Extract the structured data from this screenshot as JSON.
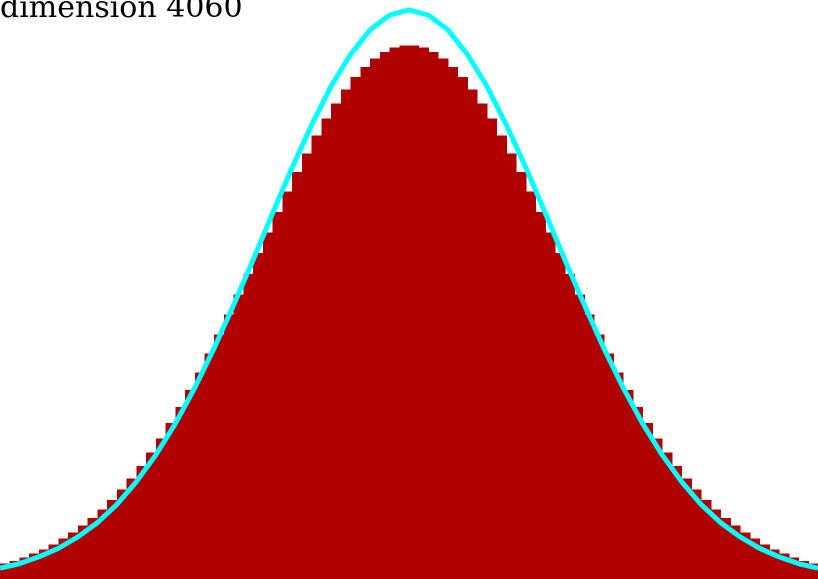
{
  "chart_data": {
    "type": "histogram",
    "title": "dimension 4060",
    "bins": [
      -42,
      -41,
      -40,
      -39,
      -38,
      -37,
      -36,
      -35,
      -34,
      -33,
      -32,
      -31,
      -30,
      -29,
      -28,
      -27,
      -26,
      -25,
      -24,
      -23,
      -22,
      -21,
      -20,
      -19,
      -18,
      -17,
      -16,
      -15,
      -14,
      -13,
      -12,
      -11,
      -10,
      -9,
      -8,
      -7,
      -6,
      -5,
      -4,
      -3,
      -2,
      -1,
      0,
      1,
      2,
      3,
      4,
      5,
      6,
      7,
      8,
      9,
      10,
      11,
      12,
      13,
      14,
      15,
      16,
      17,
      18,
      19,
      20,
      21,
      22,
      23,
      24,
      25,
      26,
      27,
      28,
      29,
      30,
      31,
      32,
      33,
      34,
      35,
      36,
      37,
      38,
      39,
      40,
      41,
      42
    ],
    "values": [
      2.7,
      3.2,
      3.8,
      4.5,
      5.2,
      6.1,
      7.1,
      8.2,
      9.4,
      10.7,
      12.2,
      13.9,
      15.7,
      17.7,
      19.9,
      22.2,
      24.7,
      27.4,
      30.2,
      33.2,
      36.3,
      39.6,
      43.0,
      46.5,
      50.0,
      53.6,
      57.3,
      60.9,
      64.5,
      68.1,
      71.5,
      74.8,
      77.9,
      80.9,
      83.6,
      86.0,
      88.2,
      90.0,
      91.5,
      92.6,
      93.4,
      93.8,
      93.8,
      93.4,
      92.6,
      91.5,
      90.0,
      88.2,
      86.0,
      83.6,
      80.9,
      77.9,
      74.8,
      71.5,
      68.1,
      64.5,
      60.9,
      57.3,
      53.6,
      50.0,
      46.5,
      43.0,
      39.6,
      36.3,
      33.2,
      30.2,
      27.4,
      24.7,
      22.2,
      19.9,
      17.7,
      15.7,
      13.9,
      12.2,
      10.7,
      9.4,
      8.2,
      7.1,
      6.1,
      5.2,
      4.5,
      3.8,
      3.2,
      2.7
    ],
    "color": "#b00000",
    "curve": {
      "color": "#00ffff",
      "x": [
        -42,
        -40,
        -38,
        -36,
        -34,
        -32,
        -30,
        -28,
        -26,
        -24,
        -22,
        -20,
        -18,
        -16,
        -14,
        -12,
        -10,
        -8,
        -6,
        -4,
        -2,
        0,
        2,
        4,
        6,
        8,
        10,
        12,
        14,
        16,
        18,
        20,
        22,
        24,
        26,
        28,
        30,
        32,
        34,
        36,
        38,
        40,
        42
      ],
      "values": [
        1.9,
        2.7,
        3.9,
        5.4,
        7.4,
        9.9,
        13.1,
        17.1,
        21.8,
        27.3,
        33.6,
        40.6,
        48.2,
        56.1,
        64.3,
        72.3,
        79.8,
        86.6,
        92.2,
        96.5,
        99.1,
        100,
        99.1,
        96.5,
        92.2,
        86.6,
        79.8,
        72.3,
        64.3,
        56.1,
        48.2,
        40.6,
        33.6,
        27.3,
        21.8,
        17.1,
        13.1,
        9.9,
        7.4,
        5.4,
        3.9,
        2.7,
        1.9
      ]
    },
    "xlim": [
      -42,
      42
    ],
    "ylim": [
      0,
      100
    ]
  }
}
